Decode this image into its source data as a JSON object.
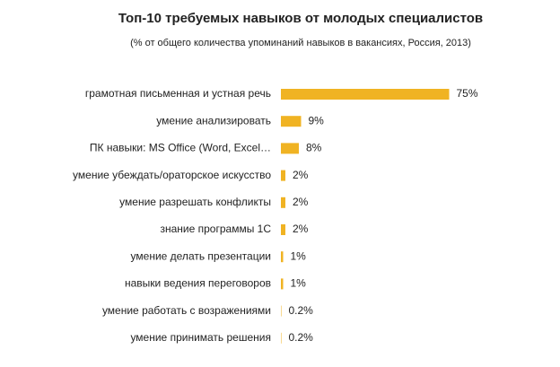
{
  "chart_data": {
    "type": "bar",
    "orientation": "horizontal",
    "title": "Топ-10 требуемых навыков от молодых специалистов",
    "subtitle": "(% от общего количества упоминаний навыков в вакансиях, Россия, 2013)",
    "categories": [
      "грамотная письменная и устная речь",
      "умение анализировать",
      "ПК навыки: MS Office (Word, Excel…",
      "умение убеждать/ораторское искусство",
      "умение разрешать конфликты",
      "знание программы 1С",
      "умение делать презентации",
      "навыки ведения переговоров",
      "умение работать с возражениями",
      "умение принимать решения"
    ],
    "values": [
      75,
      9,
      8,
      2,
      2,
      2,
      1,
      1,
      0.2,
      0.2
    ],
    "value_labels": [
      "75%",
      "9%",
      "8%",
      "2%",
      "2%",
      "2%",
      "1%",
      "1%",
      "0.2%",
      "0.2%"
    ],
    "color": "#f0b323"
  }
}
